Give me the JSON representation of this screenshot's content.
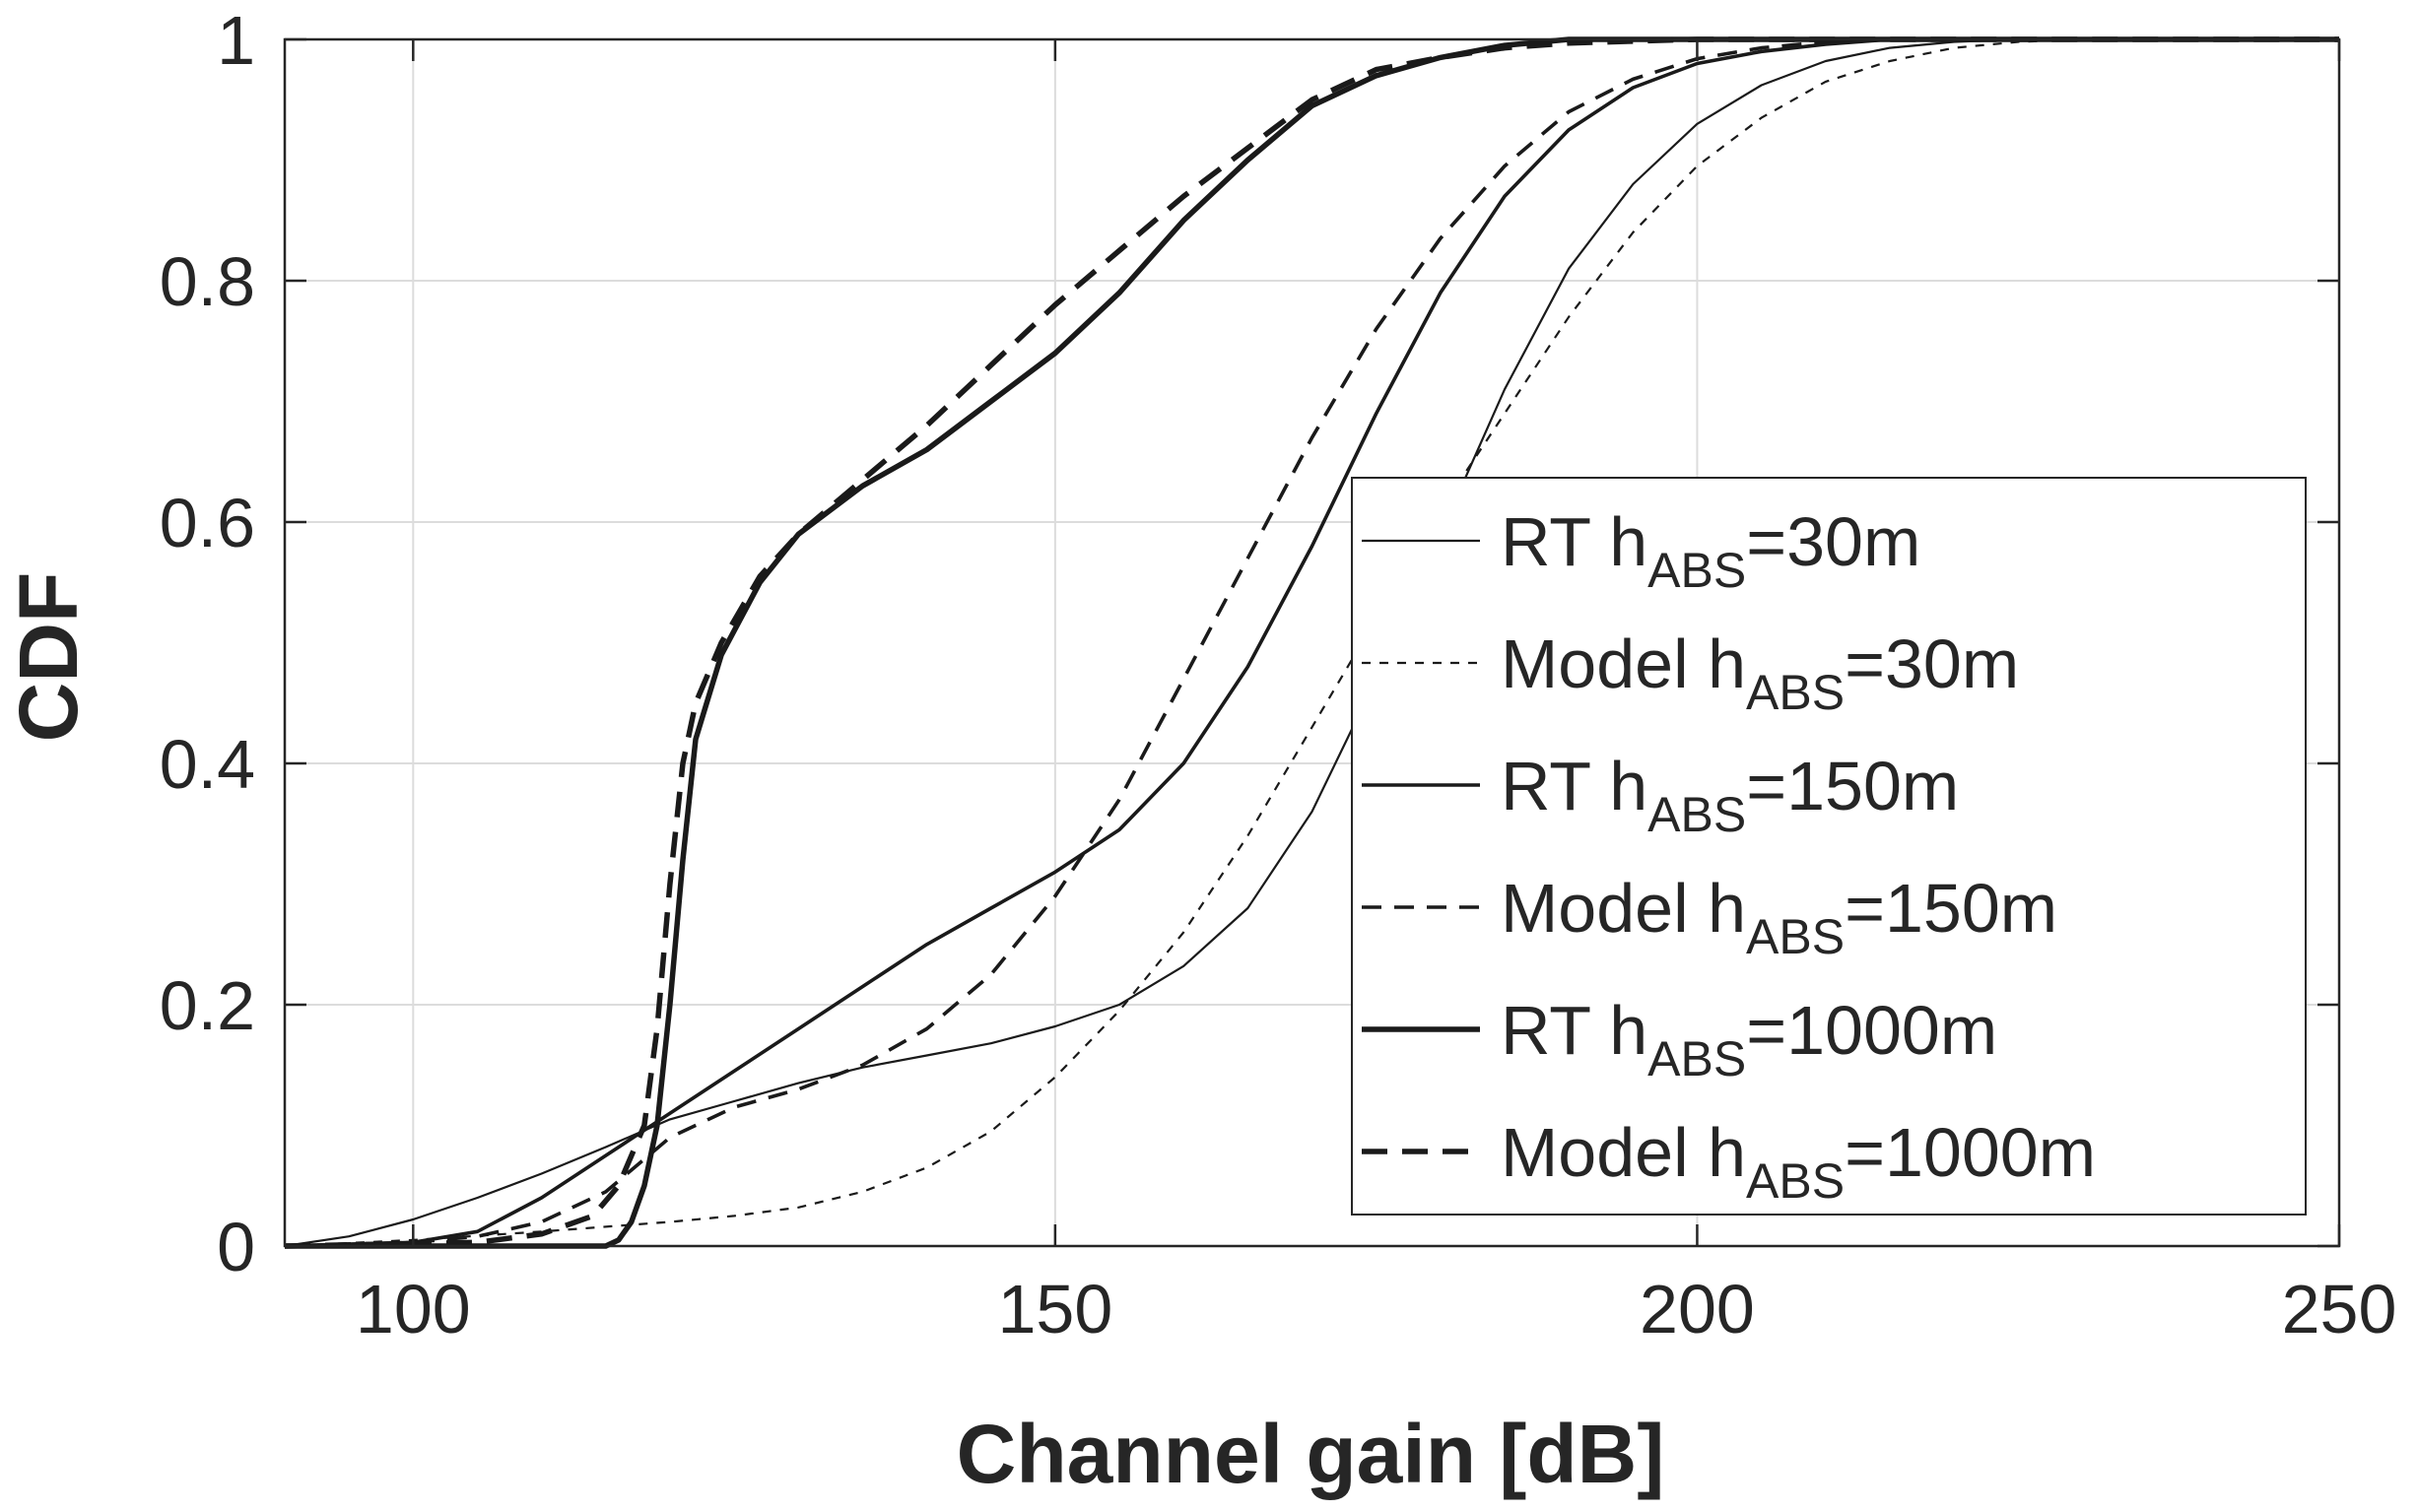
{
  "chart_data": {
    "type": "line",
    "title": "",
    "xlabel": "Channel gain [dB]",
    "ylabel": "CDF",
    "xlim": [
      90,
      250
    ],
    "ylim": [
      0,
      1
    ],
    "grid": true,
    "legend_position": "center-right",
    "x_ticks": [
      100,
      150,
      200,
      250
    ],
    "x_tick_labels": [
      "100",
      "150",
      "200",
      "250"
    ],
    "y_ticks": [
      0,
      0.2,
      0.4,
      0.6,
      0.8,
      1
    ],
    "y_tick_labels": [
      "0",
      "0.2",
      "0.4",
      "0.6",
      "0.8",
      "1"
    ],
    "series": [
      {
        "name": "RT  h_ABS=30m",
        "label_main": "RT  h",
        "label_sub": "ABS",
        "label_tail": "=30m",
        "style": "solid",
        "weight": "thin",
        "points": [
          [
            90,
            0
          ],
          [
            95,
            0.008
          ],
          [
            100,
            0.022
          ],
          [
            105,
            0.04
          ],
          [
            110,
            0.06
          ],
          [
            115,
            0.082
          ],
          [
            120,
            0.105
          ],
          [
            125,
            0.12
          ],
          [
            130,
            0.135
          ],
          [
            135,
            0.148
          ],
          [
            140,
            0.158
          ],
          [
            145,
            0.168
          ],
          [
            150,
            0.182
          ],
          [
            155,
            0.2
          ],
          [
            160,
            0.232
          ],
          [
            165,
            0.28
          ],
          [
            170,
            0.36
          ],
          [
            175,
            0.47
          ],
          [
            180,
            0.59
          ],
          [
            185,
            0.71
          ],
          [
            190,
            0.81
          ],
          [
            195,
            0.88
          ],
          [
            200,
            0.93
          ],
          [
            205,
            0.962
          ],
          [
            210,
            0.982
          ],
          [
            215,
            0.993
          ],
          [
            220,
            0.998
          ],
          [
            225,
            1
          ],
          [
            250,
            1
          ]
        ]
      },
      {
        "name": "Model  h_ABS=30m",
        "label_main": "Model  h",
        "label_sub": "ABS",
        "label_tail": "=30m",
        "style": "dashed",
        "weight": "thin",
        "points": [
          [
            90,
            0
          ],
          [
            100,
            0.005
          ],
          [
            110,
            0.012
          ],
          [
            120,
            0.02
          ],
          [
            125,
            0.025
          ],
          [
            130,
            0.032
          ],
          [
            135,
            0.045
          ],
          [
            140,
            0.065
          ],
          [
            145,
            0.095
          ],
          [
            150,
            0.14
          ],
          [
            155,
            0.195
          ],
          [
            160,
            0.26
          ],
          [
            165,
            0.34
          ],
          [
            170,
            0.43
          ],
          [
            175,
            0.52
          ],
          [
            180,
            0.61
          ],
          [
            185,
            0.69
          ],
          [
            190,
            0.77
          ],
          [
            195,
            0.84
          ],
          [
            200,
            0.895
          ],
          [
            205,
            0.935
          ],
          [
            210,
            0.965
          ],
          [
            215,
            0.982
          ],
          [
            220,
            0.993
          ],
          [
            225,
            0.998
          ],
          [
            230,
            1
          ],
          [
            250,
            1
          ]
        ]
      },
      {
        "name": "RT  h_ABS=150m",
        "label_main": "RT  h",
        "label_sub": "ABS",
        "label_tail": "=150m",
        "style": "solid",
        "weight": "medium",
        "points": [
          [
            90,
            0
          ],
          [
            100,
            0.003
          ],
          [
            105,
            0.012
          ],
          [
            110,
            0.04
          ],
          [
            115,
            0.075
          ],
          [
            120,
            0.11
          ],
          [
            125,
            0.145
          ],
          [
            130,
            0.18
          ],
          [
            135,
            0.215
          ],
          [
            140,
            0.25
          ],
          [
            145,
            0.28
          ],
          [
            150,
            0.31
          ],
          [
            155,
            0.345
          ],
          [
            160,
            0.4
          ],
          [
            165,
            0.48
          ],
          [
            170,
            0.58
          ],
          [
            175,
            0.69
          ],
          [
            180,
            0.79
          ],
          [
            185,
            0.87
          ],
          [
            190,
            0.925
          ],
          [
            195,
            0.96
          ],
          [
            200,
            0.98
          ],
          [
            205,
            0.99
          ],
          [
            210,
            0.996
          ],
          [
            215,
            1
          ],
          [
            250,
            1
          ]
        ]
      },
      {
        "name": "Model  h_ABS=150m",
        "label_main": "Model  h",
        "label_sub": "ABS",
        "label_tail": "=150m",
        "style": "dashed",
        "weight": "medium",
        "points": [
          [
            90,
            0
          ],
          [
            100,
            0.003
          ],
          [
            105,
            0.008
          ],
          [
            110,
            0.02
          ],
          [
            115,
            0.045
          ],
          [
            120,
            0.09
          ],
          [
            125,
            0.115
          ],
          [
            130,
            0.13
          ],
          [
            135,
            0.15
          ],
          [
            140,
            0.18
          ],
          [
            145,
            0.225
          ],
          [
            150,
            0.29
          ],
          [
            155,
            0.37
          ],
          [
            160,
            0.47
          ],
          [
            165,
            0.57
          ],
          [
            170,
            0.67
          ],
          [
            175,
            0.76
          ],
          [
            180,
            0.835
          ],
          [
            185,
            0.895
          ],
          [
            190,
            0.94
          ],
          [
            195,
            0.967
          ],
          [
            200,
            0.984
          ],
          [
            205,
            0.993
          ],
          [
            210,
            0.998
          ],
          [
            215,
            1
          ],
          [
            250,
            1
          ]
        ]
      },
      {
        "name": "RT  h_ABS=1000m",
        "label_main": "RT  h",
        "label_sub": "ABS",
        "label_tail": "=1000m",
        "style": "solid",
        "weight": "thick",
        "points": [
          [
            90,
            0
          ],
          [
            115,
            0
          ],
          [
            116,
            0.005
          ],
          [
            117,
            0.02
          ],
          [
            118,
            0.05
          ],
          [
            119,
            0.1
          ],
          [
            120,
            0.2
          ],
          [
            121,
            0.32
          ],
          [
            122,
            0.42
          ],
          [
            124,
            0.49
          ],
          [
            127,
            0.55
          ],
          [
            130,
            0.59
          ],
          [
            135,
            0.63
          ],
          [
            140,
            0.66
          ],
          [
            145,
            0.7
          ],
          [
            150,
            0.74
          ],
          [
            155,
            0.79
          ],
          [
            160,
            0.85
          ],
          [
            165,
            0.9
          ],
          [
            170,
            0.945
          ],
          [
            175,
            0.97
          ],
          [
            180,
            0.985
          ],
          [
            185,
            0.995
          ],
          [
            190,
            1
          ],
          [
            250,
            1
          ]
        ]
      },
      {
        "name": "Model  h_ABS=1000m",
        "label_main": "Model  h",
        "label_sub": "ABS",
        "label_tail": "=1000m",
        "style": "dashed",
        "weight": "thick",
        "points": [
          [
            90,
            0
          ],
          [
            105,
            0.003
          ],
          [
            110,
            0.01
          ],
          [
            114,
            0.025
          ],
          [
            116,
            0.05
          ],
          [
            118,
            0.1
          ],
          [
            119,
            0.18
          ],
          [
            120,
            0.3
          ],
          [
            121,
            0.4
          ],
          [
            122,
            0.45
          ],
          [
            124,
            0.5
          ],
          [
            127,
            0.555
          ],
          [
            130,
            0.59
          ],
          [
            135,
            0.635
          ],
          [
            140,
            0.68
          ],
          [
            145,
            0.73
          ],
          [
            150,
            0.78
          ],
          [
            155,
            0.825
          ],
          [
            160,
            0.87
          ],
          [
            165,
            0.91
          ],
          [
            170,
            0.95
          ],
          [
            175,
            0.975
          ],
          [
            180,
            0.985
          ],
          [
            185,
            0.993
          ],
          [
            190,
            0.997
          ],
          [
            200,
            1
          ],
          [
            250,
            1
          ]
        ]
      }
    ]
  }
}
